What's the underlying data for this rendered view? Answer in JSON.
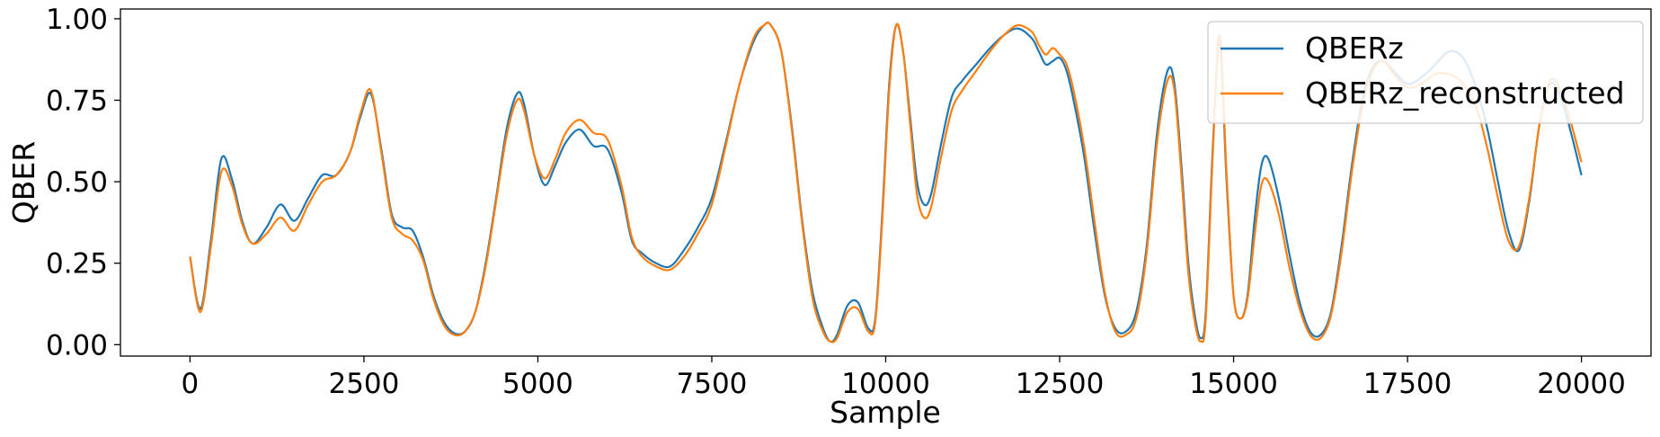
{
  "chart_data": {
    "type": "line",
    "title": "",
    "xlabel": "Sample",
    "ylabel": "QBER",
    "xlim": [
      -1000,
      21000
    ],
    "ylim": [
      -0.035,
      1.03
    ],
    "xticks": [
      0,
      2500,
      5000,
      7500,
      10000,
      12500,
      15000,
      17500,
      20000
    ],
    "yticks": [
      0.0,
      0.25,
      0.5,
      0.75,
      1.0
    ],
    "xtick_labels": [
      "0",
      "2500",
      "5000",
      "7500",
      "10000",
      "12500",
      "15000",
      "17500",
      "20000"
    ],
    "ytick_labels": [
      "0.00",
      "0.25",
      "0.50",
      "0.75",
      "1.00"
    ],
    "grid": false,
    "legend_position": "top-right",
    "series": [
      {
        "name": "QBERz",
        "color": "#1f77b4",
        "x": [
          0,
          150,
          300,
          450,
          600,
          750,
          900,
          1100,
          1300,
          1500,
          1700,
          1900,
          2100,
          2300,
          2450,
          2600,
          2750,
          2900,
          3050,
          3200,
          3350,
          3500,
          3650,
          3800,
          3950,
          4100,
          4250,
          4400,
          4550,
          4700,
          4800,
          4950,
          5100,
          5250,
          5400,
          5600,
          5800,
          6000,
          6200,
          6350,
          6500,
          6700,
          6900,
          7100,
          7300,
          7500,
          7700,
          7900,
          8100,
          8250,
          8350,
          8500,
          8650,
          8800,
          8950,
          9100,
          9200,
          9300,
          9450,
          9600,
          9750,
          9850,
          9950,
          10050,
          10150,
          10250,
          10350,
          10450,
          10550,
          10650,
          10800,
          10950,
          11100,
          11300,
          11500,
          11700,
          11900,
          12100,
          12200,
          12300,
          12400,
          12500,
          12600,
          12700,
          12850,
          13000,
          13150,
          13300,
          13450,
          13600,
          13750,
          13900,
          14050,
          14150,
          14250,
          14350,
          14450,
          14530,
          14600,
          14700,
          14800,
          14900,
          15000,
          15100,
          15200,
          15300,
          15400,
          15500,
          15650,
          15800,
          15950,
          16100,
          16250,
          16400,
          16550,
          16700,
          16850,
          17000,
          17150,
          17300,
          17500,
          17700,
          17900,
          18100,
          18300,
          18500,
          18650,
          18800,
          18950,
          19100,
          19250,
          19400,
          19550,
          19700,
          19850,
          20000
        ],
        "y": [
          0.27,
          0.11,
          0.32,
          0.57,
          0.51,
          0.38,
          0.31,
          0.36,
          0.43,
          0.38,
          0.45,
          0.52,
          0.52,
          0.59,
          0.7,
          0.77,
          0.6,
          0.4,
          0.36,
          0.35,
          0.27,
          0.15,
          0.07,
          0.035,
          0.04,
          0.1,
          0.25,
          0.45,
          0.66,
          0.77,
          0.74,
          0.58,
          0.49,
          0.55,
          0.62,
          0.66,
          0.61,
          0.6,
          0.47,
          0.32,
          0.28,
          0.25,
          0.24,
          0.29,
          0.36,
          0.45,
          0.62,
          0.8,
          0.93,
          0.98,
          0.98,
          0.9,
          0.67,
          0.38,
          0.16,
          0.05,
          0.01,
          0.03,
          0.12,
          0.13,
          0.05,
          0.08,
          0.4,
          0.8,
          0.98,
          0.9,
          0.7,
          0.5,
          0.43,
          0.46,
          0.62,
          0.76,
          0.81,
          0.86,
          0.91,
          0.95,
          0.97,
          0.94,
          0.9,
          0.86,
          0.87,
          0.88,
          0.84,
          0.75,
          0.58,
          0.35,
          0.15,
          0.05,
          0.04,
          0.1,
          0.3,
          0.65,
          0.84,
          0.8,
          0.55,
          0.25,
          0.08,
          0.02,
          0.1,
          0.6,
          0.93,
          0.5,
          0.15,
          0.08,
          0.15,
          0.38,
          0.55,
          0.57,
          0.45,
          0.28,
          0.13,
          0.04,
          0.03,
          0.1,
          0.3,
          0.55,
          0.75,
          0.85,
          0.87,
          0.84,
          0.8,
          0.82,
          0.86,
          0.9,
          0.88,
          0.78,
          0.66,
          0.5,
          0.35,
          0.29,
          0.44,
          0.68,
          0.8,
          0.76,
          0.65,
          0.52
        ]
      },
      {
        "name": "QBERz_reconstructed",
        "color": "#ff7f0e",
        "x": [
          0,
          150,
          300,
          450,
          600,
          750,
          900,
          1100,
          1300,
          1500,
          1700,
          1900,
          2100,
          2300,
          2450,
          2600,
          2750,
          2900,
          3050,
          3200,
          3350,
          3500,
          3650,
          3800,
          3950,
          4100,
          4250,
          4400,
          4550,
          4700,
          4800,
          4950,
          5100,
          5250,
          5400,
          5600,
          5800,
          6000,
          6200,
          6350,
          6500,
          6700,
          6900,
          7100,
          7300,
          7500,
          7700,
          7900,
          8100,
          8250,
          8350,
          8500,
          8650,
          8800,
          8950,
          9100,
          9200,
          9300,
          9450,
          9600,
          9750,
          9850,
          9950,
          10050,
          10150,
          10250,
          10350,
          10450,
          10550,
          10650,
          10800,
          10950,
          11100,
          11300,
          11500,
          11700,
          11900,
          12100,
          12200,
          12300,
          12400,
          12500,
          12600,
          12700,
          12850,
          13000,
          13150,
          13300,
          13450,
          13600,
          13750,
          13900,
          14050,
          14150,
          14250,
          14350,
          14450,
          14530,
          14600,
          14700,
          14800,
          14900,
          15000,
          15100,
          15200,
          15300,
          15400,
          15500,
          15650,
          15800,
          15950,
          16100,
          16250,
          16400,
          16550,
          16700,
          16850,
          17000,
          17150,
          17300,
          17500,
          17700,
          17900,
          18100,
          18300,
          18500,
          18650,
          18800,
          18950,
          19100,
          19250,
          19400,
          19550,
          19700,
          19850,
          20000
        ],
        "y": [
          0.27,
          0.1,
          0.3,
          0.53,
          0.49,
          0.37,
          0.31,
          0.34,
          0.39,
          0.35,
          0.43,
          0.5,
          0.52,
          0.59,
          0.71,
          0.78,
          0.59,
          0.39,
          0.34,
          0.32,
          0.26,
          0.14,
          0.06,
          0.03,
          0.04,
          0.1,
          0.24,
          0.44,
          0.64,
          0.75,
          0.72,
          0.58,
          0.51,
          0.57,
          0.65,
          0.69,
          0.65,
          0.63,
          0.49,
          0.33,
          0.27,
          0.24,
          0.23,
          0.27,
          0.34,
          0.43,
          0.61,
          0.8,
          0.94,
          0.98,
          0.98,
          0.9,
          0.66,
          0.37,
          0.14,
          0.04,
          0.01,
          0.02,
          0.1,
          0.11,
          0.04,
          0.07,
          0.38,
          0.78,
          0.98,
          0.9,
          0.68,
          0.46,
          0.39,
          0.42,
          0.58,
          0.72,
          0.78,
          0.84,
          0.9,
          0.95,
          0.98,
          0.96,
          0.92,
          0.89,
          0.91,
          0.89,
          0.86,
          0.78,
          0.61,
          0.38,
          0.16,
          0.04,
          0.03,
          0.08,
          0.28,
          0.62,
          0.81,
          0.78,
          0.52,
          0.22,
          0.06,
          0.01,
          0.08,
          0.58,
          0.95,
          0.52,
          0.15,
          0.08,
          0.14,
          0.33,
          0.49,
          0.5,
          0.4,
          0.24,
          0.11,
          0.03,
          0.02,
          0.09,
          0.28,
          0.53,
          0.73,
          0.84,
          0.87,
          0.83,
          0.79,
          0.8,
          0.83,
          0.83,
          0.8,
          0.72,
          0.6,
          0.45,
          0.32,
          0.3,
          0.45,
          0.68,
          0.81,
          0.78,
          0.68,
          0.56
        ]
      }
    ]
  }
}
